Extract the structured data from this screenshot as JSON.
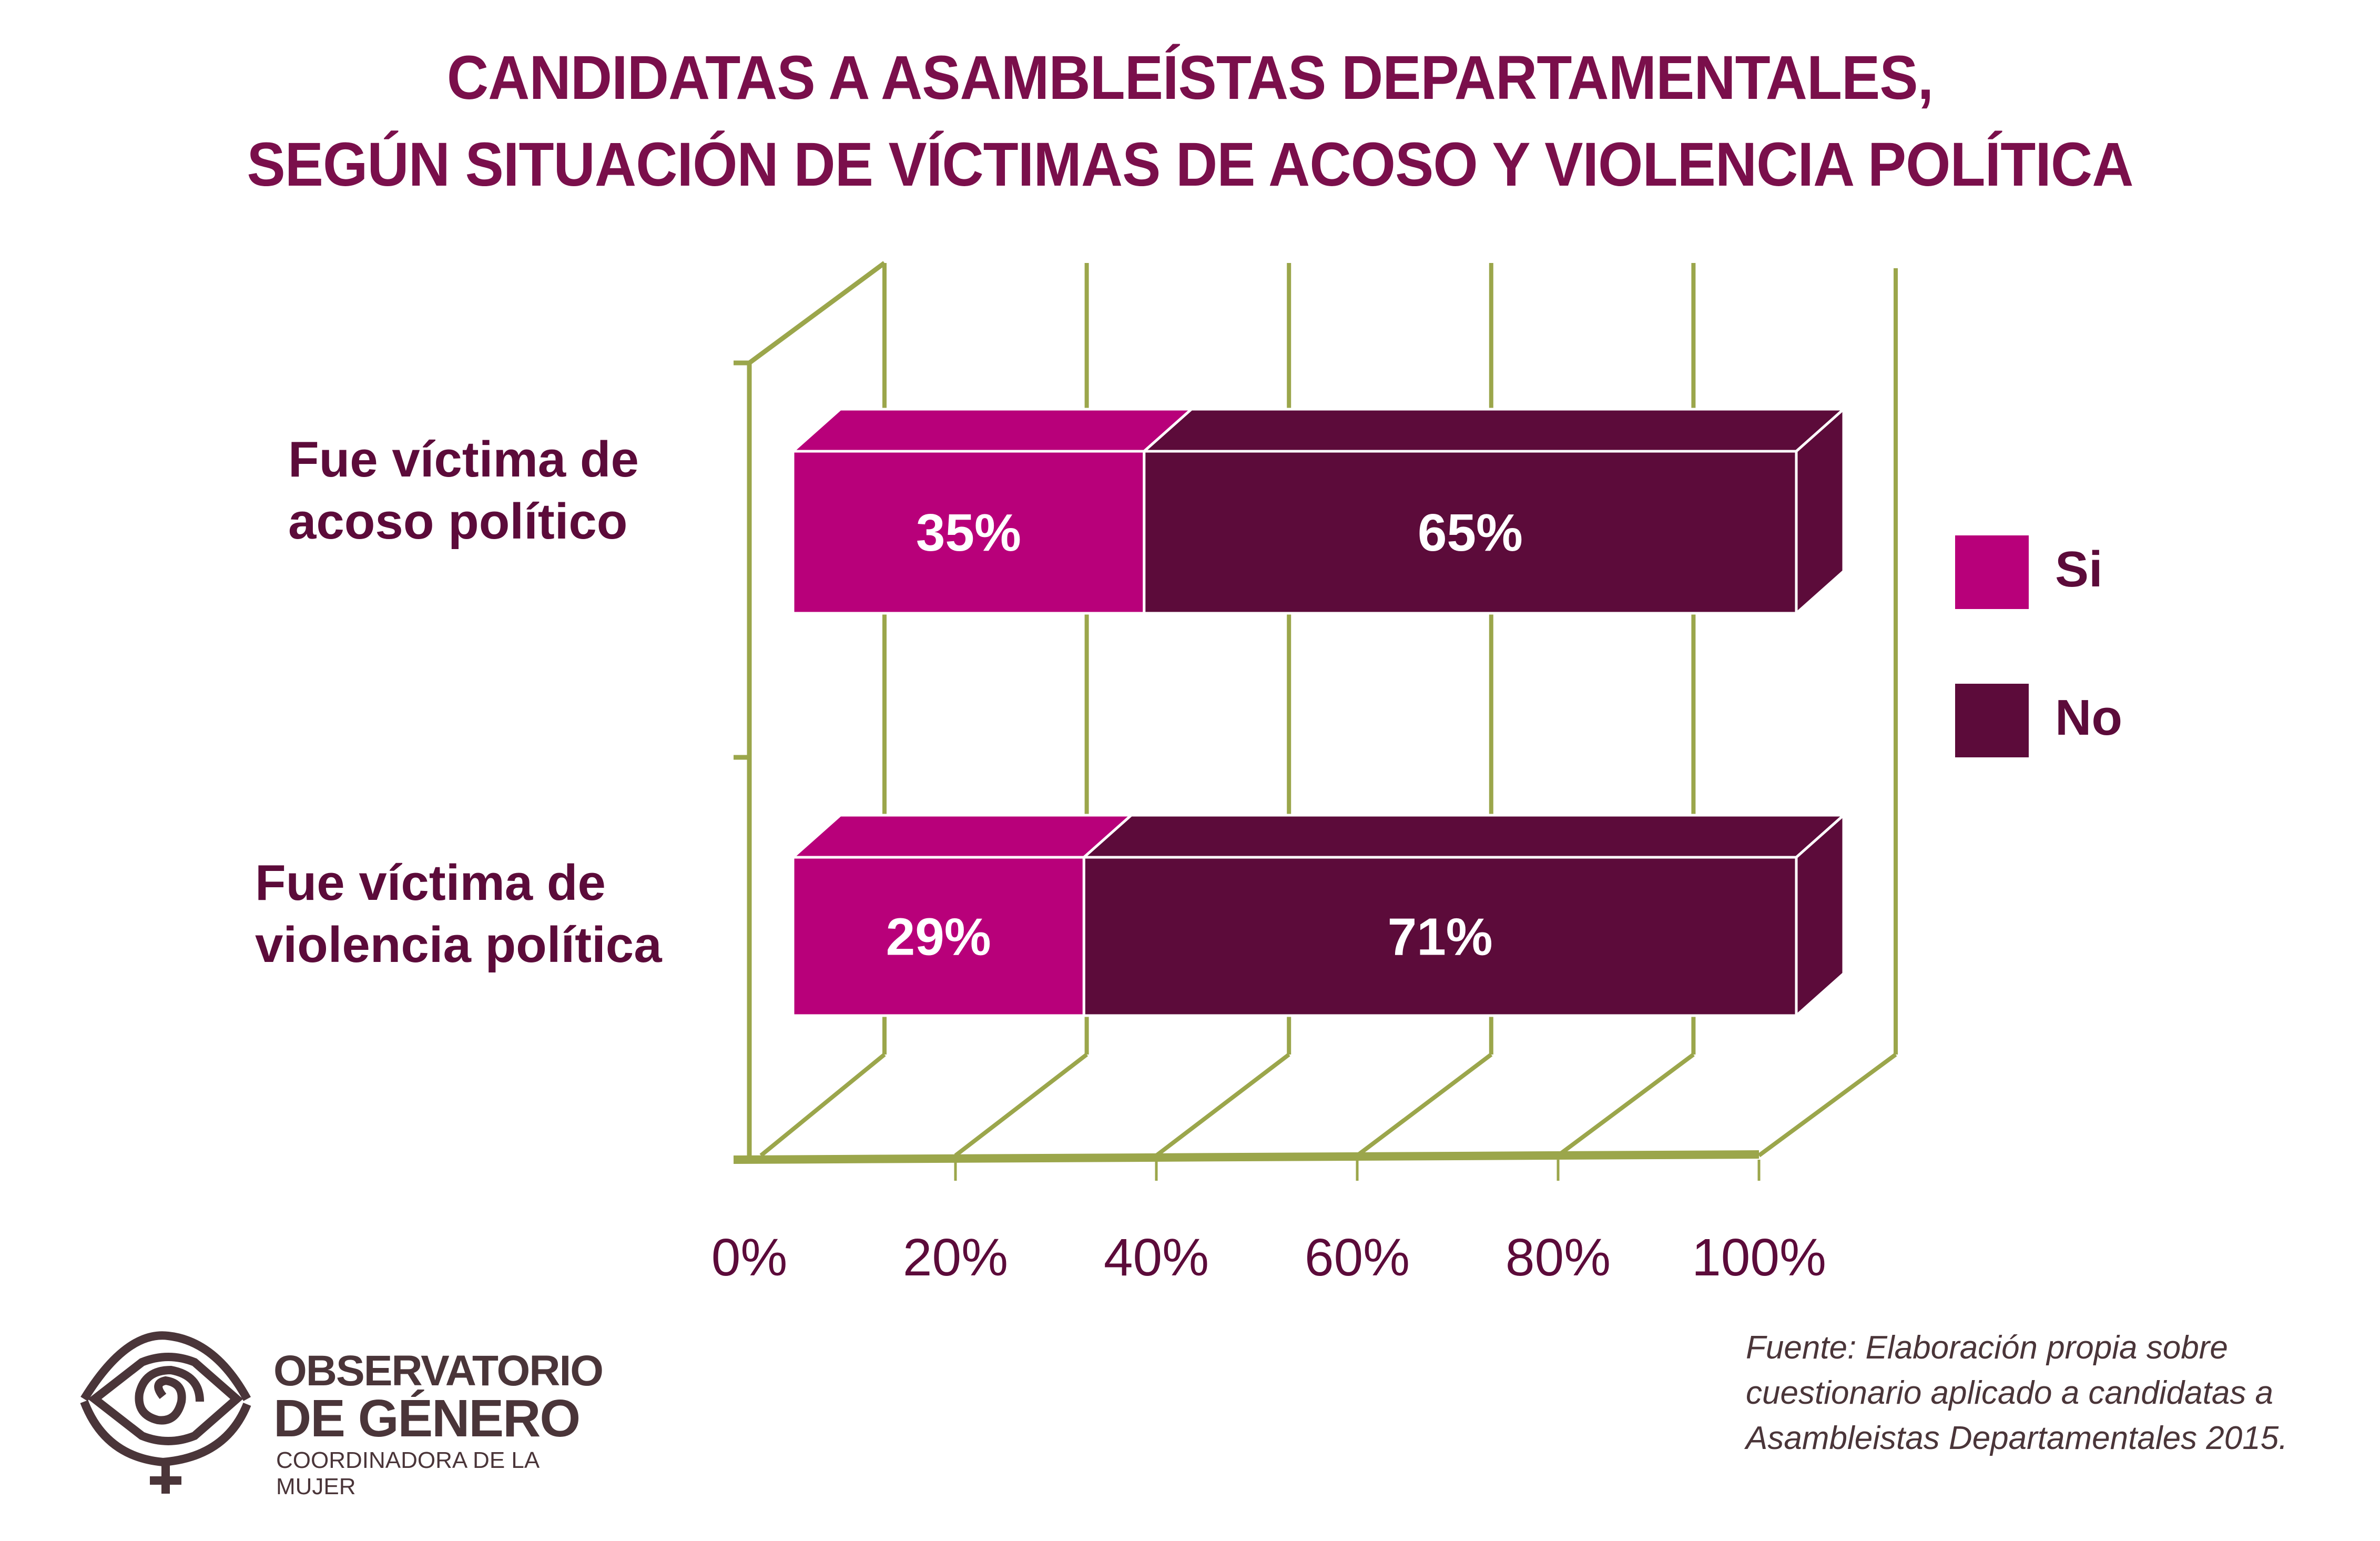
{
  "chart_data": {
    "type": "bar",
    "orientation": "horizontal",
    "stacked": true,
    "style": "3d",
    "title": "CANDIDATAS A ASAMBLEÍSTAS DEPARTAMENTALES,\nSEGÚN SITUACIÓN DE VÍCTIMAS DE ACOSO Y VIOLENCIA POLÍTICA",
    "title_lines": [
      "CANDIDATAS A ASAMBLEÍSTAS DEPARTAMENTALES,",
      "SEGÚN SITUACIÓN DE VÍCTIMAS DE ACOSO Y VIOLENCIA POLÍTICA"
    ],
    "categories": [
      {
        "label_lines": [
          "Fue víctima de",
          "acoso político"
        ]
      },
      {
        "label_lines": [
          "Fue víctima de",
          "violencia política"
        ]
      }
    ],
    "series": [
      {
        "name": "Si",
        "color": "#B8007A",
        "values": [
          35,
          29
        ],
        "labels": [
          "35%",
          "29%"
        ]
      },
      {
        "name": "No",
        "color": "#5C0B3A",
        "values": [
          65,
          71
        ],
        "labels": [
          "65%",
          "71%"
        ]
      }
    ],
    "xlim": [
      0,
      100
    ],
    "xticks": [
      0,
      20,
      40,
      60,
      80,
      100
    ],
    "xtick_labels": [
      "0%",
      "20%",
      "40%",
      "60%",
      "80%",
      "100%"
    ],
    "xlabel": "",
    "ylabel": "",
    "grid": true,
    "grid_color": "#9BA64B",
    "legend_position": "right"
  },
  "legend": [
    {
      "label": "Si",
      "color": "#B8007A"
    },
    {
      "label": "No",
      "color": "#5C0B3A"
    }
  ],
  "logo": {
    "line1": "OBSERVATORIO",
    "line2": "DE GÉNERO",
    "line3": "COORDINADORA DE LA MUJER"
  },
  "source": {
    "lines": [
      "Fuente: Elaboración propia sobre",
      "cuestionario aplicado a candidatas a",
      "Asambleistas Departamentales 2015."
    ]
  }
}
